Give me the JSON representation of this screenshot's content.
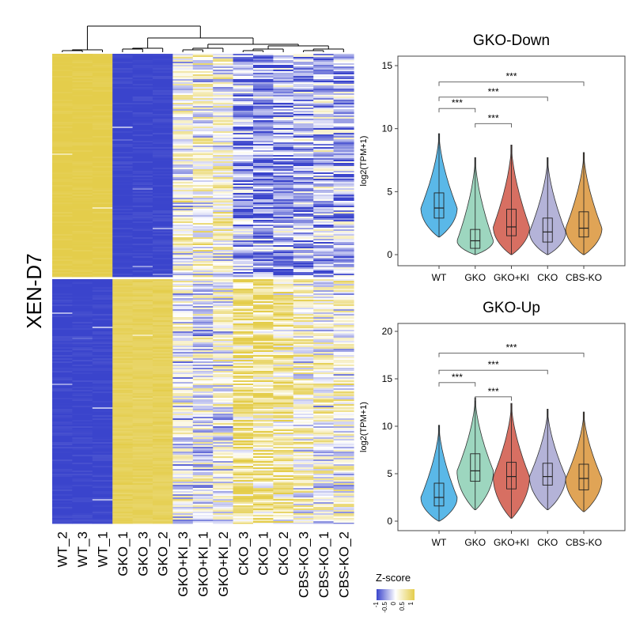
{
  "colors": {
    "low": "#3a44cc",
    "mid": "#ffffff",
    "high": "#e4cd4b",
    "divider": "#ffffff",
    "box_frame": "#444444"
  },
  "chart_data": [
    {
      "type": "heatmap",
      "row_label": "XEN-D7",
      "columns": [
        "WT_2",
        "WT_3",
        "WT_1",
        "GKO_1",
        "GKO_3",
        "GKO_2",
        "GKO+KI_3",
        "GKO+KI_1",
        "GKO+KI_2",
        "CKO_3",
        "CKO_1",
        "CKO_2",
        "CBS-KO_3",
        "CBS-KO_1",
        "CBS-KO_2"
      ],
      "row_clusters": [
        {
          "name": "GKO-Down",
          "mean_zscore": [
            1,
            1,
            1,
            -1,
            -1,
            -1,
            0.1,
            0.1,
            0.1,
            -0.5,
            -0.6,
            -0.5,
            -0.35,
            -0.35,
            -0.4
          ]
        },
        {
          "name": "GKO-Up",
          "mean_zscore": [
            -1,
            -1,
            -1,
            0.9,
            0.9,
            0.9,
            0.0,
            -0.1,
            0.0,
            0.6,
            0.55,
            0.45,
            0.2,
            0.1,
            0.1
          ]
        }
      ],
      "legend": {
        "title": "Z-score",
        "ticks": [
          "-1",
          "-0.5",
          "0",
          "0.5",
          "1"
        ],
        "range": [
          -1,
          1
        ]
      }
    },
    {
      "type": "violin",
      "title": "GKO-Down",
      "ylabel": "log2(TPM+1)",
      "ylim": [
        0,
        15
      ],
      "yticks": [
        "0",
        "5",
        "10",
        "15"
      ],
      "categories": [
        "WT",
        "GKO",
        "GKO+KI",
        "CKO",
        "CBS-KO"
      ],
      "series_colors": [
        "#5ab8e8",
        "#9dd6bf",
        "#d76f62",
        "#b4b3d8",
        "#e0a456"
      ],
      "box": [
        {
          "min": 1.4,
          "q1": 2.9,
          "median": 3.7,
          "q3": 4.9,
          "max": 9.6
        },
        {
          "min": 0,
          "q1": 0.5,
          "median": 1.1,
          "q3": 2.0,
          "max": 7.7
        },
        {
          "min": 0,
          "q1": 1.5,
          "median": 2.2,
          "q3": 3.6,
          "max": 8.7
        },
        {
          "min": 0,
          "q1": 1.0,
          "median": 1.8,
          "q3": 2.9,
          "max": 7.7
        },
        {
          "min": 0,
          "q1": 1.4,
          "median": 2.1,
          "q3": 3.4,
          "max": 8.1
        }
      ],
      "significance": [
        {
          "from": 0,
          "to": 4,
          "y": 13.7,
          "label": "***"
        },
        {
          "from": 0,
          "to": 3,
          "y": 12.5,
          "label": "***"
        },
        {
          "from": 0,
          "to": 1,
          "y": 11.6,
          "label": "***"
        },
        {
          "from": 1,
          "to": 2,
          "y": 10.4,
          "label": "***"
        }
      ]
    },
    {
      "type": "violin",
      "title": "GKO-Up",
      "ylabel": "log2(TPM+1)",
      "ylim": [
        0,
        20
      ],
      "yticks": [
        "0",
        "5",
        "10",
        "15",
        "20"
      ],
      "categories": [
        "WT",
        "GKO",
        "GKO+KI",
        "CKO",
        "CBS-KO"
      ],
      "series_colors": [
        "#5ab8e8",
        "#9dd6bf",
        "#d76f62",
        "#b4b3d8",
        "#e0a456"
      ],
      "box": [
        {
          "min": 0,
          "q1": 1.6,
          "median": 2.5,
          "q3": 4.0,
          "max": 10.1
        },
        {
          "min": 1.2,
          "q1": 4.2,
          "median": 5.3,
          "q3": 7.1,
          "max": 13.0
        },
        {
          "min": 0.3,
          "q1": 3.4,
          "median": 4.7,
          "q3": 6.2,
          "max": 12.4
        },
        {
          "min": 1.2,
          "q1": 3.8,
          "median": 4.7,
          "q3": 6.1,
          "max": 11.8
        },
        {
          "min": 1.0,
          "q1": 3.3,
          "median": 4.5,
          "q3": 6.0,
          "max": 11.5
        }
      ],
      "significance": [
        {
          "from": 0,
          "to": 4,
          "y": 17.7,
          "label": "***"
        },
        {
          "from": 0,
          "to": 3,
          "y": 15.9,
          "label": "***"
        },
        {
          "from": 0,
          "to": 1,
          "y": 14.6,
          "label": "***"
        },
        {
          "from": 1,
          "to": 2,
          "y": 13.1,
          "label": "***"
        }
      ]
    }
  ]
}
